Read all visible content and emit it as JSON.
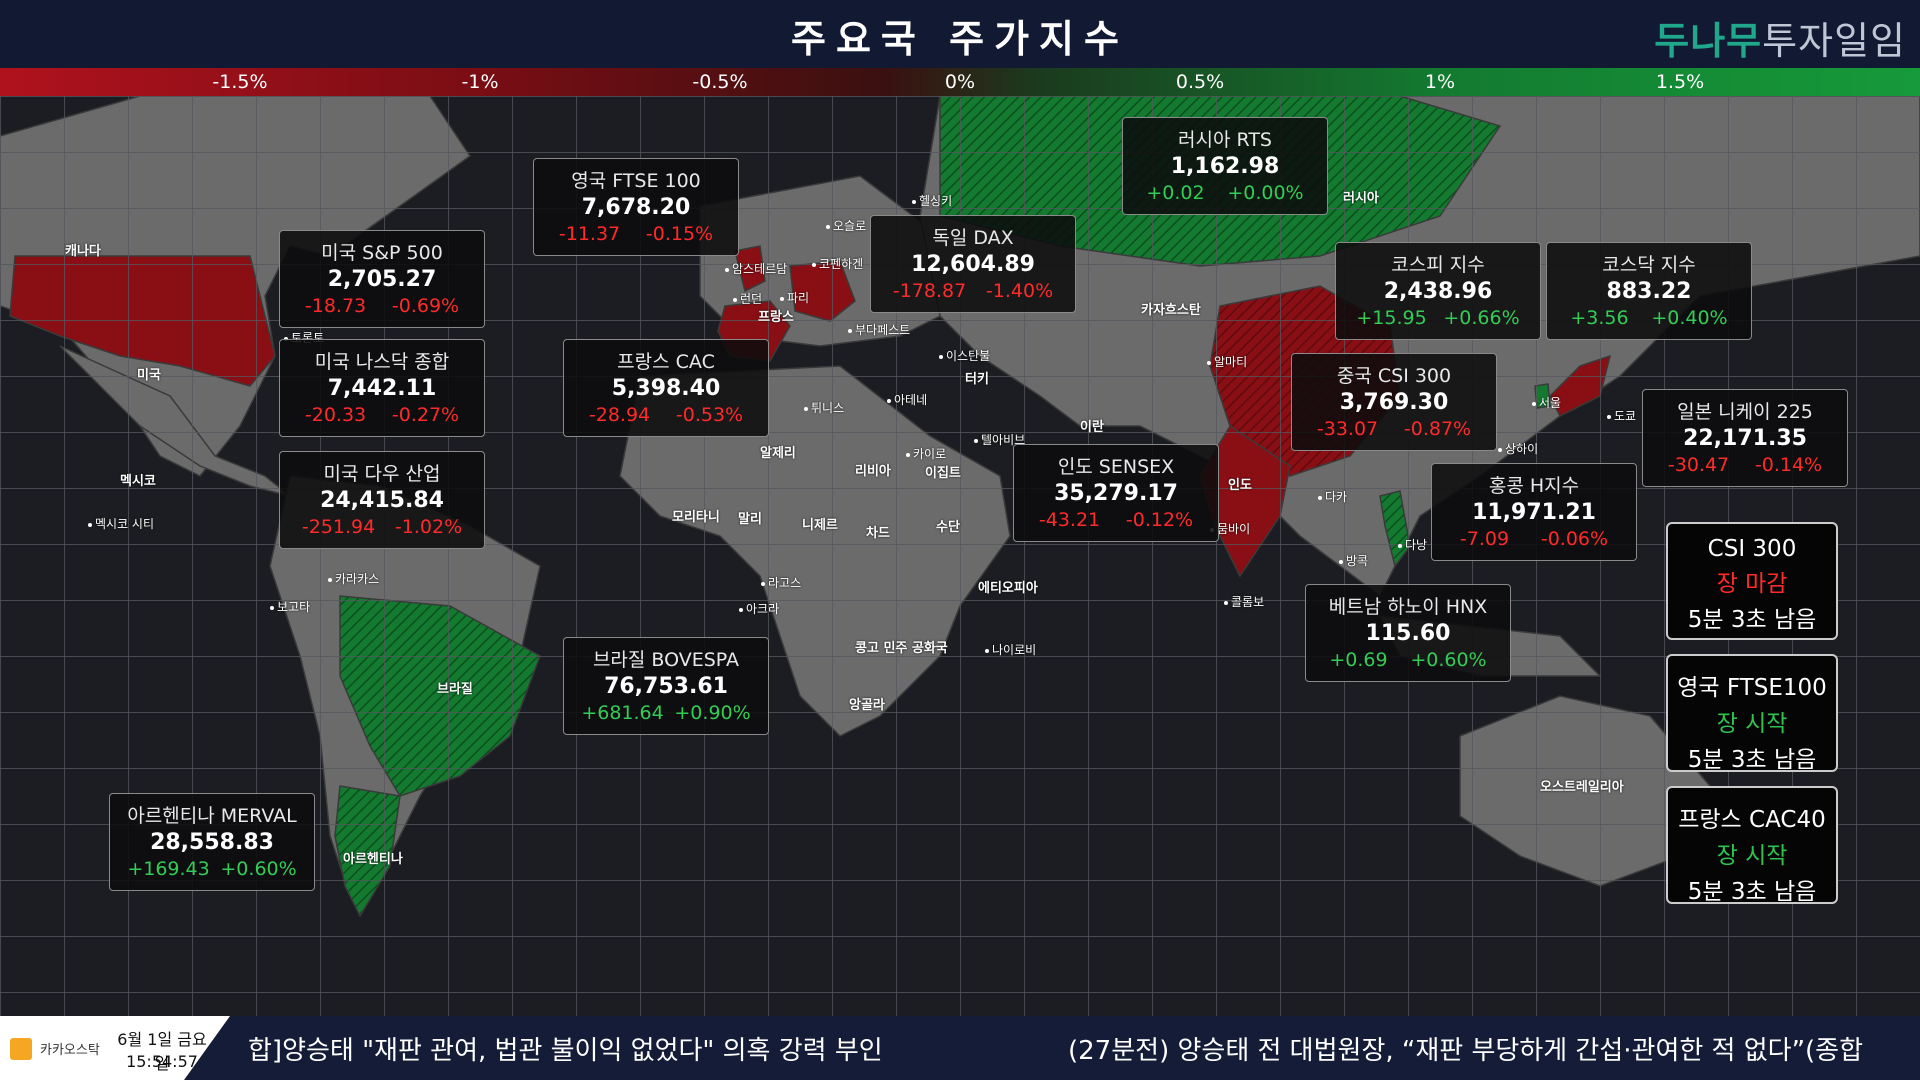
{
  "header": {
    "title": "주요국 주가지수",
    "logo_part1": "두나무",
    "logo_part2": "투자일임"
  },
  "scale": {
    "ticks": [
      {
        "label": "-1.5%"
      },
      {
        "label": "-1%"
      },
      {
        "label": "-0.5%"
      },
      {
        "label": "0%"
      },
      {
        "label": "0.5%"
      },
      {
        "label": "1%"
      },
      {
        "label": "1.5%"
      }
    ]
  },
  "colors": {
    "up": "#33cc55",
    "down": "#ff2a2a",
    "header_bg": "#121a33",
    "accent": "#1fa88b"
  },
  "countries": {
    "canada": "캐나다",
    "usa": "미국",
    "mexico": "멕시코",
    "brazil": "브라질",
    "argentina": "아르헨티나",
    "russia": "러시아",
    "kazakhstan": "카자흐스탄",
    "iran": "이란",
    "india": "인도",
    "australia": "오스트레일리아",
    "france": "프랑스",
    "turkey": "터키",
    "algeria": "알제리",
    "libya": "리비아",
    "egypt": "이집트",
    "mali": "말리",
    "niger": "니제르",
    "chad": "차드",
    "sudan": "수단",
    "mauritania": "모리타니",
    "ethiopia": "에티오피아",
    "drc": "콩고 민주 공화국",
    "angola": "앙골라"
  },
  "cities": {
    "helsinki": "헬싱키",
    "oslo": "오슬로",
    "amsterdam": "암스테르담",
    "copenhagen": "코펜하겐",
    "london": "런던",
    "paris": "파리",
    "budapest": "부다페스트",
    "istanbul": "이스탄불",
    "tunis": "튀니스",
    "athens": "아테네",
    "cairo": "카이로",
    "telaviv": "텔아비브",
    "almaty": "알마티",
    "seoul": "서울",
    "tokyo": "도쿄",
    "shanghai": "상하이",
    "dhaka": "다카",
    "bangkok": "방콕",
    "colombo": "콜롬보",
    "hanoi": "다낭",
    "mumbai": "뭄바이",
    "lagos": "라고스",
    "accra": "아크라",
    "nairobi": "나이로비",
    "toronto": "토론토",
    "mexicocity": "멕시코 시티",
    "caracas": "카라카스",
    "bogota": "보고타"
  },
  "indices": [
    {
      "id": "sp500",
      "name": "미국 S&P 500",
      "value": "2,705.27",
      "change": "-18.73",
      "pct": "-0.69%",
      "dir": "down"
    },
    {
      "id": "nasdaq",
      "name": "미국 나스닥 종합",
      "value": "7,442.11",
      "change": "-20.33",
      "pct": "-0.27%",
      "dir": "down"
    },
    {
      "id": "dow",
      "name": "미국 다우 산업",
      "value": "24,415.84",
      "change": "-251.94",
      "pct": "-1.02%",
      "dir": "down"
    },
    {
      "id": "ftse",
      "name": "영국 FTSE 100",
      "value": "7,678.20",
      "change": "-11.37",
      "pct": "-0.15%",
      "dir": "down"
    },
    {
      "id": "cac",
      "name": "프랑스 CAC",
      "value": "5,398.40",
      "change": "-28.94",
      "pct": "-0.53%",
      "dir": "down"
    },
    {
      "id": "dax",
      "name": "독일 DAX",
      "value": "12,604.89",
      "change": "-178.87",
      "pct": "-1.40%",
      "dir": "down"
    },
    {
      "id": "rts",
      "name": "러시아 RTS",
      "value": "1,162.98",
      "change": "+0.02",
      "pct": "+0.00%",
      "dir": "up"
    },
    {
      "id": "kospi",
      "name": "코스피 지수",
      "value": "2,438.96",
      "change": "+15.95",
      "pct": "+0.66%",
      "dir": "up"
    },
    {
      "id": "kosdaq",
      "name": "코스닥 지수",
      "value": "883.22",
      "change": "+3.56",
      "pct": "+0.40%",
      "dir": "up"
    },
    {
      "id": "csi",
      "name": "중국 CSI 300",
      "value": "3,769.30",
      "change": "-33.07",
      "pct": "-0.87%",
      "dir": "down"
    },
    {
      "id": "nikkei",
      "name": "일본 니케이 225",
      "value": "22,171.35",
      "change": "-30.47",
      "pct": "-0.14%",
      "dir": "down"
    },
    {
      "id": "hsi",
      "name": "홍콩 H지수",
      "value": "11,971.21",
      "change": "-7.09",
      "pct": "-0.06%",
      "dir": "down"
    },
    {
      "id": "sensex",
      "name": "인도 SENSEX",
      "value": "35,279.17",
      "change": "-43.21",
      "pct": "-0.12%",
      "dir": "down"
    },
    {
      "id": "hnx",
      "name": "베트남 하노이 HNX",
      "value": "115.60",
      "change": "+0.69",
      "pct": "+0.60%",
      "dir": "up"
    },
    {
      "id": "bovespa",
      "name": "브라질 BOVESPA",
      "value": "76,753.61",
      "change": "+681.64",
      "pct": "+0.90%",
      "dir": "up"
    },
    {
      "id": "merval",
      "name": "아르헨티나 MERVAL",
      "value": "28,558.83",
      "change": "+169.43",
      "pct": "+0.60%",
      "dir": "up"
    }
  ],
  "timers": [
    {
      "name": "CSI 300",
      "status": "장 마감",
      "state": "closed",
      "remaining": "5분 3초 남음"
    },
    {
      "name": "영국 FTSE100",
      "status": "장 시작",
      "state": "open",
      "remaining": "5분 3초 남음"
    },
    {
      "name": "프랑스 CAC40",
      "status": "장 시작",
      "state": "open",
      "remaining": "5분 3초 남음"
    }
  ],
  "ticker": {
    "brand": "카카오스탁",
    "date": "6월 1일 금요일",
    "time": "15:54:57",
    "news1": "합]양승태 \"재판 관여, 법관 불이익 없었다\" 의혹 강력 부인",
    "news2": "(27분전)  양승태 전 대법원장, “재판 부당하게 간섭·관여한 적 없다”(종합"
  }
}
